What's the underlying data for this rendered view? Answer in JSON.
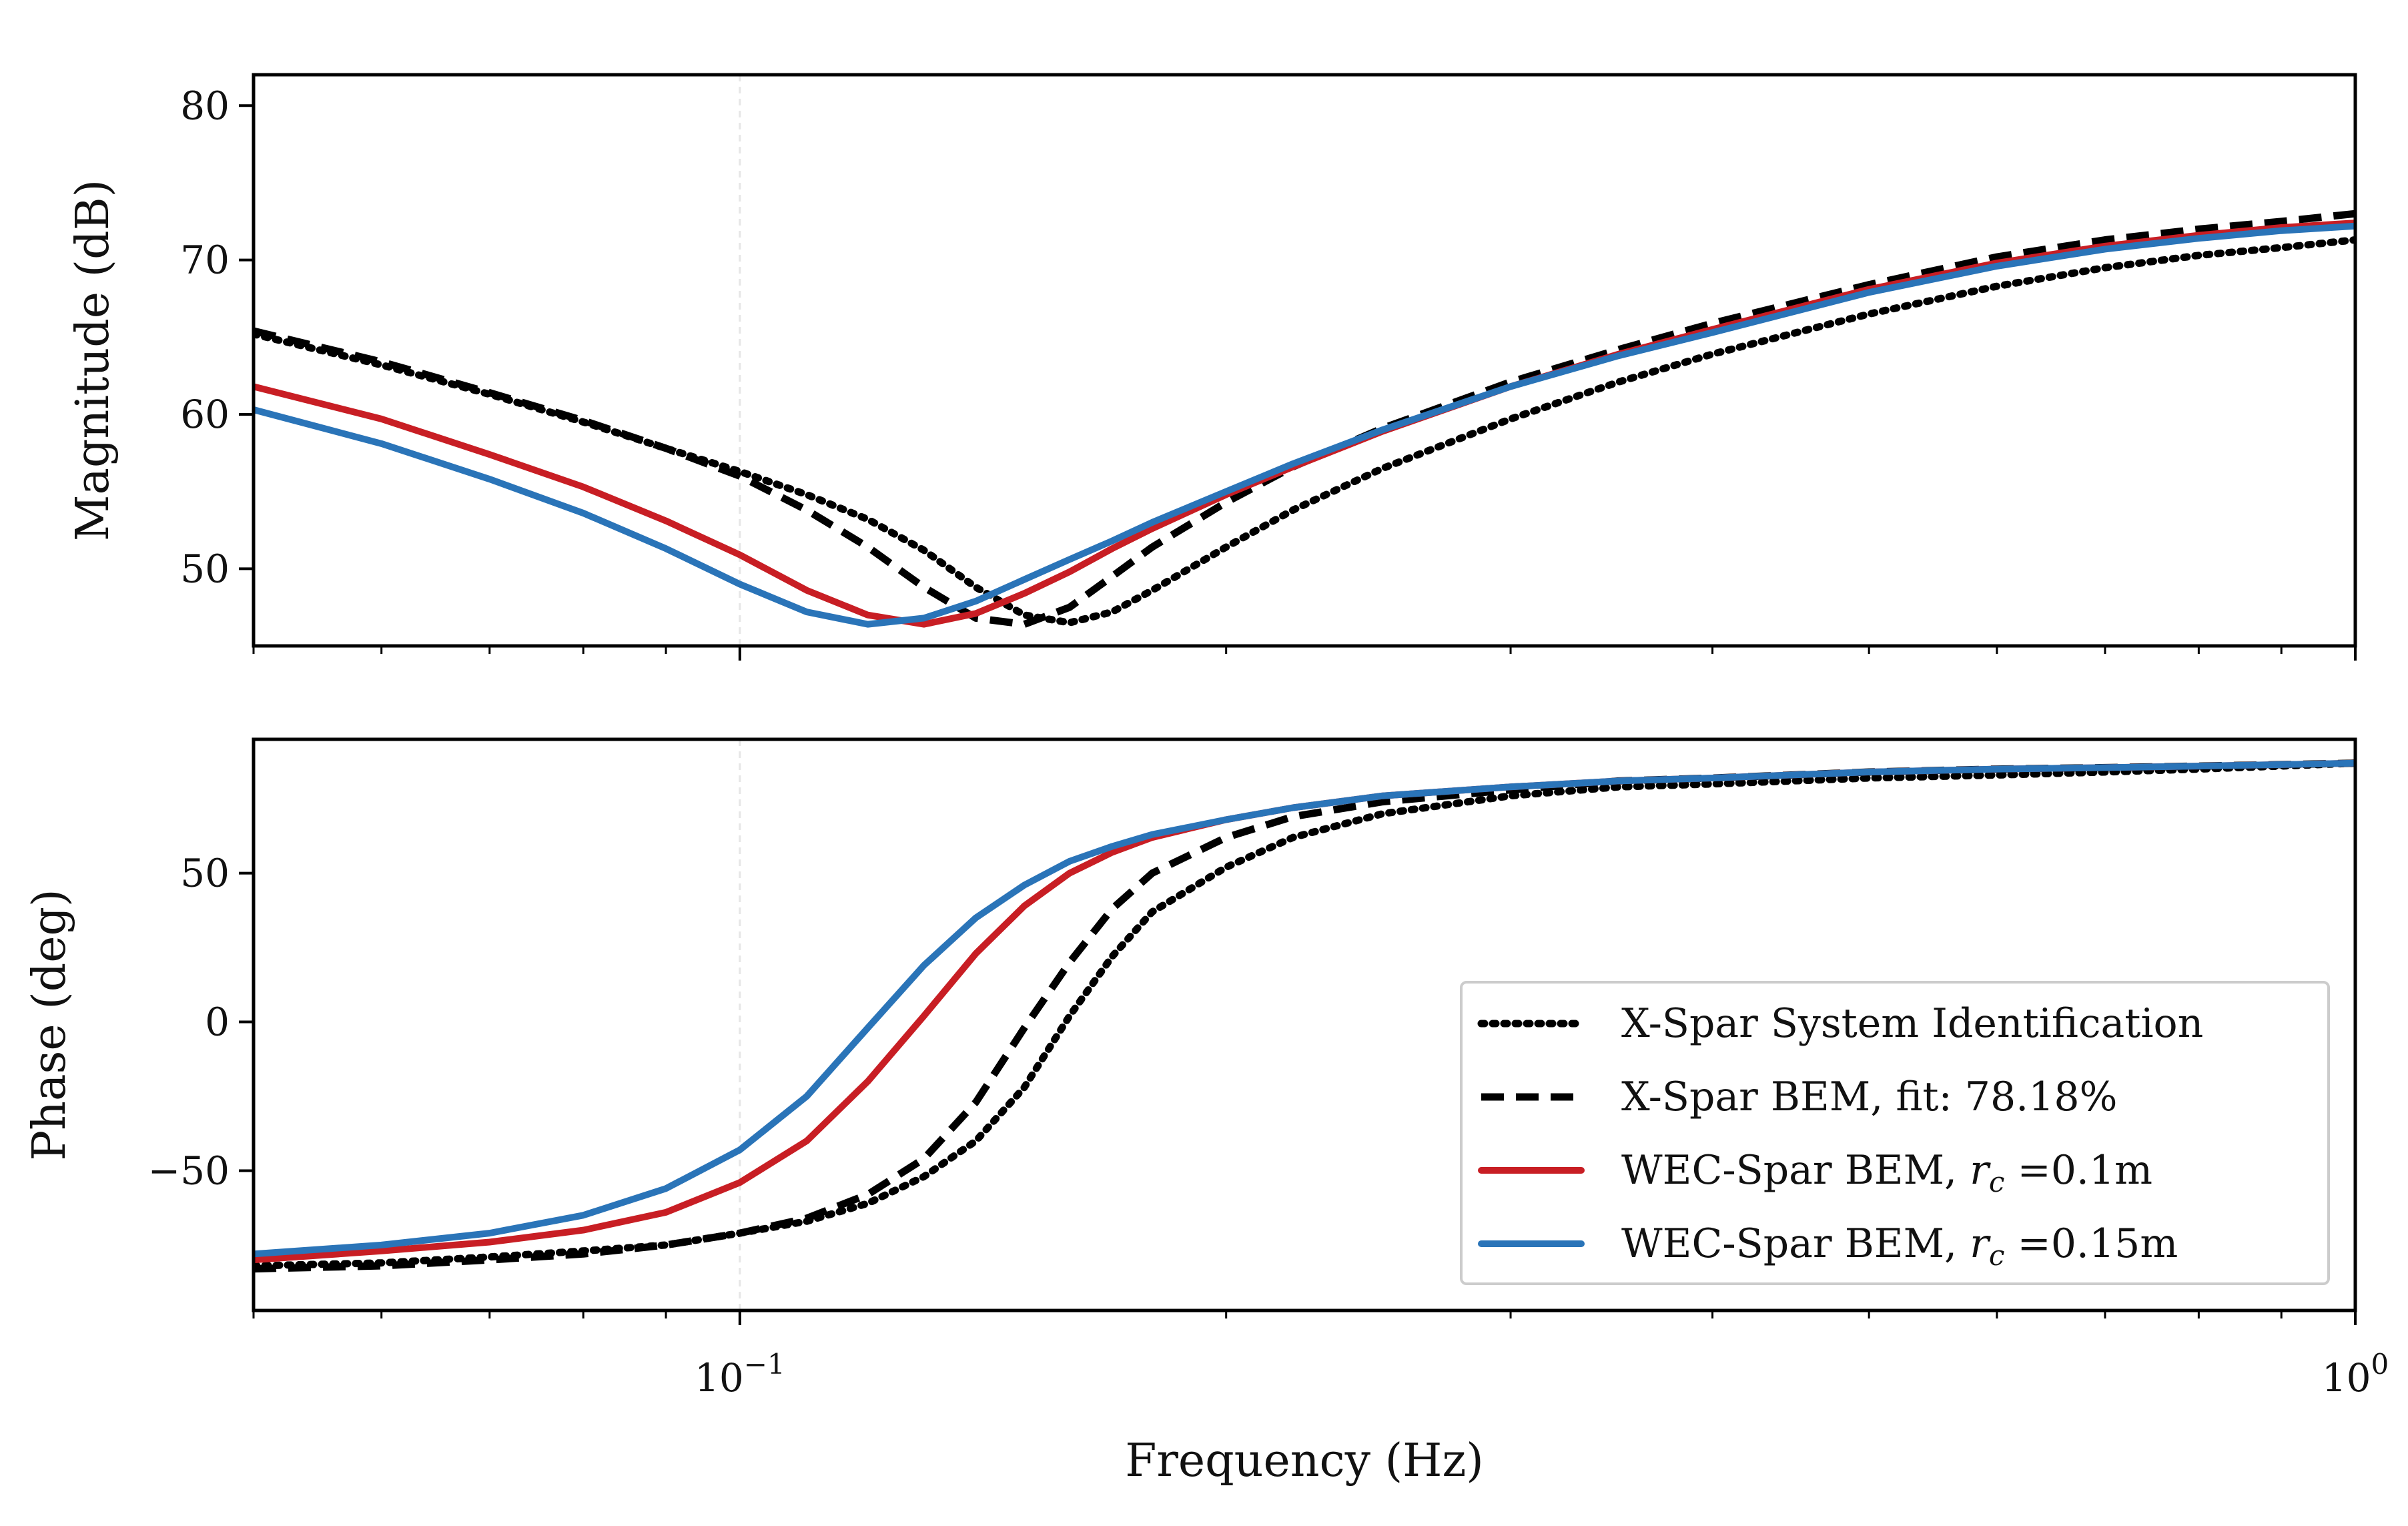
{
  "chart_data": [
    {
      "type": "line",
      "panel": "top",
      "title": "",
      "xlabel": "",
      "ylabel": "Magnitude (dB)",
      "xscale": "log",
      "xlim": [
        0.05,
        1.0
      ],
      "ylim": [
        45,
        82
      ],
      "yticks": [
        50,
        60,
        70,
        80
      ],
      "ytick_labels": [
        "50",
        "60",
        "70",
        "80"
      ],
      "grid": "vertical line at 10^-1 only",
      "series": [
        {
          "name": "X-Spar System Identification",
          "style": "dotted",
          "color": "#000000",
          "x": [
            0.05,
            0.06,
            0.07,
            0.08,
            0.09,
            0.1,
            0.11,
            0.12,
            0.13,
            0.14,
            0.15,
            0.16,
            0.17,
            0.18,
            0.2,
            0.22,
            0.25,
            0.3,
            0.35,
            0.4,
            0.5,
            0.6,
            0.7,
            0.8,
            0.9,
            1.0
          ],
          "y": [
            65.2,
            63.2,
            61.3,
            59.5,
            57.8,
            56.3,
            54.8,
            53.2,
            51.2,
            48.8,
            47.0,
            46.5,
            47.2,
            48.6,
            51.4,
            53.8,
            56.5,
            59.7,
            62.1,
            63.9,
            66.5,
            68.3,
            69.5,
            70.3,
            70.8,
            71.3
          ]
        },
        {
          "name": "X-Spar BEM, fit: 78.18%",
          "style": "dashed",
          "color": "#000000",
          "x": [
            0.05,
            0.06,
            0.07,
            0.08,
            0.09,
            0.1,
            0.11,
            0.12,
            0.13,
            0.14,
            0.15,
            0.16,
            0.17,
            0.18,
            0.2,
            0.22,
            0.25,
            0.3,
            0.35,
            0.4,
            0.5,
            0.6,
            0.7,
            0.8,
            0.9,
            1.0
          ],
          "y": [
            65.4,
            63.4,
            61.4,
            59.6,
            57.8,
            56.0,
            53.8,
            51.4,
            48.8,
            46.8,
            46.4,
            47.5,
            49.5,
            51.4,
            54.3,
            56.6,
            59.1,
            62.1,
            64.2,
            65.9,
            68.4,
            70.2,
            71.3,
            72.0,
            72.5,
            73.0
          ]
        },
        {
          "name": "WEC-Spar BEM, r_c =0.1m",
          "style": "solid",
          "color": "#c81e24",
          "x": [
            0.05,
            0.06,
            0.07,
            0.08,
            0.09,
            0.1,
            0.11,
            0.12,
            0.13,
            0.14,
            0.15,
            0.16,
            0.17,
            0.18,
            0.2,
            0.22,
            0.25,
            0.3,
            0.35,
            0.4,
            0.5,
            0.6,
            0.7,
            0.8,
            0.9,
            1.0
          ],
          "y": [
            61.8,
            59.7,
            57.4,
            55.3,
            53.1,
            50.9,
            48.6,
            47.0,
            46.4,
            47.1,
            48.4,
            49.8,
            51.3,
            52.6,
            54.8,
            56.6,
            58.9,
            61.8,
            63.9,
            65.5,
            68.1,
            69.8,
            70.9,
            71.6,
            72.1,
            72.4
          ]
        },
        {
          "name": "WEC-Spar BEM, r_c =0.15m",
          "style": "solid",
          "color": "#2a74b8",
          "x": [
            0.05,
            0.06,
            0.07,
            0.08,
            0.09,
            0.1,
            0.11,
            0.12,
            0.13,
            0.14,
            0.15,
            0.16,
            0.17,
            0.18,
            0.2,
            0.22,
            0.25,
            0.3,
            0.35,
            0.4,
            0.5,
            0.6,
            0.7,
            0.8,
            0.9,
            1.0
          ],
          "y": [
            60.3,
            58.1,
            55.8,
            53.6,
            51.3,
            49.0,
            47.2,
            46.4,
            46.8,
            47.9,
            49.3,
            50.6,
            51.8,
            53.0,
            55.0,
            56.8,
            59.0,
            61.8,
            63.8,
            65.3,
            67.9,
            69.6,
            70.7,
            71.4,
            71.9,
            72.2
          ]
        }
      ]
    },
    {
      "type": "line",
      "panel": "bottom",
      "title": "",
      "xlabel": "Frequency (Hz)",
      "ylabel": "Phase (deg)",
      "xscale": "log",
      "xlim": [
        0.05,
        1.0
      ],
      "ylim": [
        -97,
        95
      ],
      "yticks": [
        -50,
        0,
        50
      ],
      "ytick_labels": [
        "−50",
        "0",
        "50"
      ],
      "xtick_labels": [
        {
          "value": 0.1,
          "base": "10",
          "exp": "−1"
        },
        {
          "value": 1.0,
          "base": "10",
          "exp": "0"
        }
      ],
      "grid": "vertical line at 10^-1 only",
      "legend": "lower-right",
      "legend_entries": [
        {
          "label": "X-Spar System Identification",
          "style": "dotted",
          "color": "#000000"
        },
        {
          "label": "X-Spar BEM, fit: 78.18%",
          "style": "dashed",
          "color": "#000000"
        },
        {
          "label_prefix": "WEC-Spar BEM, ",
          "label_var": "r",
          "label_sub": "c",
          "label_suffix": " =0.1m",
          "style": "solid",
          "color": "#c81e24"
        },
        {
          "label_prefix": "WEC-Spar BEM, ",
          "label_var": "r",
          "label_sub": "c",
          "label_suffix": " =0.15m",
          "style": "solid",
          "color": "#2a74b8"
        }
      ],
      "series": [
        {
          "name": "X-Spar System Identification",
          "style": "dotted",
          "color": "#000000",
          "x": [
            0.05,
            0.06,
            0.07,
            0.08,
            0.09,
            0.1,
            0.11,
            0.12,
            0.13,
            0.14,
            0.15,
            0.16,
            0.17,
            0.18,
            0.2,
            0.22,
            0.25,
            0.3,
            0.35,
            0.4,
            0.5,
            0.6,
            0.7,
            0.8,
            0.9,
            1.0
          ],
          "y": [
            -82,
            -81,
            -79,
            -77,
            -75,
            -71,
            -67,
            -61,
            -52,
            -40,
            -22,
            2,
            22,
            37,
            52,
            62,
            70,
            76,
            79,
            80,
            82,
            83,
            84,
            85,
            86,
            87
          ]
        },
        {
          "name": "X-Spar BEM, fit: 78.18%",
          "style": "dashed",
          "color": "#000000",
          "x": [
            0.05,
            0.06,
            0.07,
            0.08,
            0.09,
            0.1,
            0.11,
            0.12,
            0.13,
            0.14,
            0.15,
            0.16,
            0.17,
            0.18,
            0.2,
            0.22,
            0.25,
            0.3,
            0.35,
            0.4,
            0.5,
            0.6,
            0.7,
            0.8,
            0.9,
            1.0
          ],
          "y": [
            -83,
            -82,
            -80,
            -78,
            -75,
            -71,
            -66,
            -58,
            -46,
            -27,
            -2,
            20,
            38,
            50,
            62,
            69,
            74,
            78,
            81,
            82,
            84,
            85,
            85.5,
            86,
            86.5,
            87
          ]
        },
        {
          "name": "WEC-Spar BEM, r_c =0.1m",
          "style": "solid",
          "color": "#c81e24",
          "x": [
            0.05,
            0.06,
            0.07,
            0.08,
            0.09,
            0.1,
            0.11,
            0.12,
            0.13,
            0.14,
            0.15,
            0.16,
            0.17,
            0.18,
            0.2,
            0.22,
            0.25,
            0.3,
            0.35,
            0.4,
            0.5,
            0.6,
            0.7,
            0.8,
            0.9,
            1.0
          ],
          "y": [
            -80,
            -77,
            -74,
            -70,
            -64,
            -54,
            -40,
            -20,
            2,
            23,
            39,
            50,
            57,
            62,
            68,
            72,
            76,
            79,
            81,
            82,
            84,
            85,
            85.5,
            86,
            86.5,
            87
          ]
        },
        {
          "name": "WEC-Spar BEM, r_c =0.15m",
          "style": "solid",
          "color": "#2a74b8",
          "x": [
            0.05,
            0.06,
            0.07,
            0.08,
            0.09,
            0.1,
            0.11,
            0.12,
            0.13,
            0.14,
            0.15,
            0.16,
            0.17,
            0.18,
            0.2,
            0.22,
            0.25,
            0.3,
            0.35,
            0.4,
            0.5,
            0.6,
            0.7,
            0.8,
            0.9,
            1.0
          ],
          "y": [
            -78,
            -75,
            -71,
            -65,
            -56,
            -43,
            -25,
            -2,
            19,
            35,
            46,
            54,
            59,
            63,
            68,
            72,
            76,
            79,
            81,
            82,
            84,
            85,
            85.5,
            86,
            86.5,
            87
          ]
        }
      ]
    }
  ]
}
